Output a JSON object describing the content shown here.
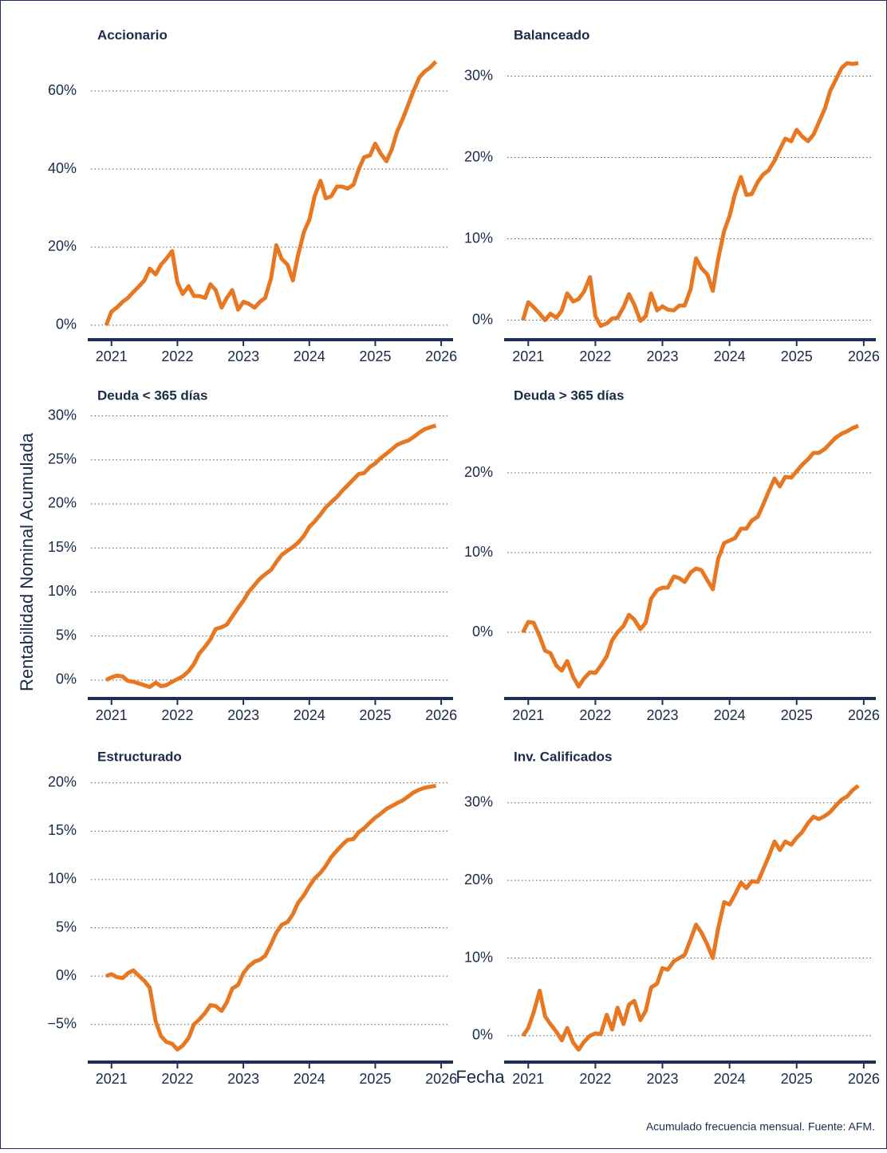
{
  "ylabel": "Rentabilidad Nominal Acumulada",
  "xlabel": "Fecha",
  "caption": "Acumulado frecuencia mensual. Fuente: AFM.",
  "chart_data": [
    {
      "type": "line",
      "title": "Accionario",
      "color": "#e87722",
      "grid": true,
      "x": [
        2020.92,
        2021.0,
        2021.08,
        2021.17,
        2021.25,
        2021.33,
        2021.42,
        2021.5,
        2021.58,
        2021.67,
        2021.75,
        2021.83,
        2021.92,
        2022.0,
        2022.08,
        2022.17,
        2022.25,
        2022.33,
        2022.42,
        2022.5,
        2022.58,
        2022.67,
        2022.75,
        2022.83,
        2022.92,
        2023.0,
        2023.08,
        2023.17,
        2023.25,
        2023.33,
        2023.42,
        2023.5,
        2023.58,
        2023.67,
        2023.75,
        2023.83,
        2023.92,
        2024.0,
        2024.08,
        2024.17,
        2024.25,
        2024.33,
        2024.42,
        2024.5,
        2024.58,
        2024.67,
        2024.75,
        2024.83,
        2024.92,
        2025.0,
        2025.08,
        2025.17,
        2025.25,
        2025.33,
        2025.42,
        2025.5,
        2025.58,
        2025.67,
        2025.75,
        2025.83,
        2025.92
      ],
      "values": [
        0,
        3.5,
        4.5,
        6,
        7,
        8.5,
        10,
        11.5,
        14.5,
        13,
        15.5,
        17,
        19,
        11,
        8,
        10,
        7.5,
        7.5,
        7,
        10.5,
        9,
        4.5,
        7,
        9,
        4,
        6,
        5.5,
        4.5,
        6,
        7,
        12,
        20.5,
        17,
        15.5,
        11.5,
        18,
        24,
        27,
        33,
        37,
        32.5,
        33,
        35.5,
        35.5,
        35,
        36,
        40,
        43,
        43.5,
        46.5,
        44,
        42,
        45,
        49.5,
        53,
        56.5,
        60,
        63.5,
        65,
        66,
        67.5
      ],
      "xlim": [
        2020.64,
        2026.18
      ],
      "xticks": [
        2021,
        2022,
        2023,
        2024,
        2025,
        2026
      ],
      "ylim": [
        -3.7,
        69
      ],
      "yticks": [
        {
          "value": 0,
          "label": "0%"
        },
        {
          "value": 20,
          "label": "20%"
        },
        {
          "value": 40,
          "label": "40%"
        },
        {
          "value": 60,
          "label": "60%"
        }
      ]
    },
    {
      "type": "line",
      "title": "Balanceado",
      "color": "#e87722",
      "grid": true,
      "x": [
        2020.92,
        2021.0,
        2021.08,
        2021.17,
        2021.25,
        2021.33,
        2021.42,
        2021.5,
        2021.58,
        2021.67,
        2021.75,
        2021.83,
        2021.92,
        2022.0,
        2022.08,
        2022.17,
        2022.25,
        2022.33,
        2022.42,
        2022.5,
        2022.58,
        2022.67,
        2022.75,
        2022.83,
        2022.92,
        2023.0,
        2023.08,
        2023.17,
        2023.25,
        2023.33,
        2023.42,
        2023.5,
        2023.58,
        2023.67,
        2023.75,
        2023.83,
        2023.92,
        2024.0,
        2024.08,
        2024.17,
        2024.25,
        2024.33,
        2024.42,
        2024.5,
        2024.58,
        2024.67,
        2024.75,
        2024.83,
        2024.92,
        2025.0,
        2025.08,
        2025.17,
        2025.25,
        2025.33,
        2025.42,
        2025.5,
        2025.58,
        2025.67,
        2025.75,
        2025.83,
        2025.92
      ],
      "values": [
        0,
        2.2,
        1.6,
        0.8,
        0,
        0.8,
        0.3,
        1.2,
        3.3,
        2.3,
        2.6,
        3.5,
        5.3,
        0.5,
        -0.7,
        -0.4,
        0.2,
        0.3,
        1.6,
        3.2,
        1.9,
        -0.1,
        0.5,
        3.3,
        1.2,
        1.7,
        1.3,
        1.2,
        1.8,
        1.8,
        3.8,
        7.6,
        6.4,
        5.6,
        3.6,
        7.5,
        11,
        12.8,
        15.5,
        17.6,
        15.4,
        15.5,
        17,
        17.9,
        18.4,
        19.6,
        21,
        22.3,
        22,
        23.4,
        22.6,
        22,
        22.8,
        24.3,
        26,
        28.2,
        29.5,
        31,
        31.6,
        31.5,
        31.6
      ],
      "xlim": [
        2020.64,
        2026.18
      ],
      "xticks": [
        2021,
        2022,
        2023,
        2024,
        2025,
        2026
      ],
      "ylim": [
        -2.4,
        32.5
      ],
      "yticks": [
        {
          "value": 0,
          "label": "0%"
        },
        {
          "value": 10,
          "label": "10%"
        },
        {
          "value": 20,
          "label": "20%"
        },
        {
          "value": 30,
          "label": "30%"
        }
      ]
    },
    {
      "type": "line",
      "title": "Deuda < 365 días",
      "color": "#e87722",
      "grid": true,
      "x": [
        2020.92,
        2021.0,
        2021.08,
        2021.17,
        2021.25,
        2021.33,
        2021.42,
        2021.5,
        2021.58,
        2021.67,
        2021.75,
        2021.83,
        2021.92,
        2022.0,
        2022.08,
        2022.17,
        2022.25,
        2022.33,
        2022.42,
        2022.5,
        2022.58,
        2022.67,
        2022.75,
        2022.83,
        2022.92,
        2023.0,
        2023.08,
        2023.17,
        2023.25,
        2023.33,
        2023.42,
        2023.5,
        2023.58,
        2023.67,
        2023.75,
        2023.83,
        2023.92,
        2024.0,
        2024.08,
        2024.17,
        2024.25,
        2024.33,
        2024.42,
        2024.5,
        2024.58,
        2024.67,
        2024.75,
        2024.83,
        2024.92,
        2025.0,
        2025.08,
        2025.17,
        2025.25,
        2025.33,
        2025.42,
        2025.5,
        2025.58,
        2025.67,
        2025.75,
        2025.83,
        2025.92
      ],
      "values": [
        0,
        0.3,
        0.5,
        0.4,
        -0.1,
        -0.2,
        -0.4,
        -0.6,
        -0.8,
        -0.3,
        -0.7,
        -0.6,
        -0.2,
        0.1,
        0.4,
        1.0,
        1.8,
        3.0,
        3.8,
        4.6,
        5.8,
        6.0,
        6.3,
        7.2,
        8.2,
        9.0,
        10.0,
        10.8,
        11.5,
        12.0,
        12.5,
        13.4,
        14.2,
        14.7,
        15.1,
        15.6,
        16.4,
        17.4,
        18.0,
        18.8,
        19.6,
        20.2,
        20.8,
        21.5,
        22.1,
        22.8,
        23.4,
        23.5,
        24.2,
        24.6,
        25.2,
        25.7,
        26.2,
        26.7,
        27.0,
        27.2,
        27.6,
        28.1,
        28.5,
        28.7,
        28.9
      ],
      "xlim": [
        2020.64,
        2026.18
      ],
      "xticks": [
        2021,
        2022,
        2023,
        2024,
        2025,
        2026
      ],
      "ylim": [
        -2.1,
        31.5
      ],
      "yticks": [
        {
          "value": 0,
          "label": "0%"
        },
        {
          "value": 5,
          "label": "5%"
        },
        {
          "value": 10,
          "label": "10%"
        },
        {
          "value": 15,
          "label": "15%"
        },
        {
          "value": 20,
          "label": "20%"
        },
        {
          "value": 25,
          "label": "25%"
        },
        {
          "value": 30,
          "label": "30%"
        }
      ]
    },
    {
      "type": "line",
      "title": "Deuda > 365 días",
      "color": "#e87722",
      "grid": true,
      "x": [
        2020.92,
        2021.0,
        2021.08,
        2021.17,
        2021.25,
        2021.33,
        2021.42,
        2021.5,
        2021.58,
        2021.67,
        2021.75,
        2021.83,
        2021.92,
        2022.0,
        2022.08,
        2022.17,
        2022.25,
        2022.33,
        2022.42,
        2022.5,
        2022.58,
        2022.67,
        2022.75,
        2022.83,
        2022.92,
        2023.0,
        2023.08,
        2023.17,
        2023.25,
        2023.33,
        2023.42,
        2023.5,
        2023.58,
        2023.67,
        2023.75,
        2023.83,
        2023.92,
        2024.0,
        2024.08,
        2024.17,
        2024.25,
        2024.33,
        2024.42,
        2024.5,
        2024.58,
        2024.67,
        2024.75,
        2024.83,
        2024.92,
        2025.0,
        2025.08,
        2025.17,
        2025.25,
        2025.33,
        2025.42,
        2025.5,
        2025.58,
        2025.67,
        2025.75,
        2025.83,
        2025.92
      ],
      "values": [
        0,
        1.3,
        1.2,
        -0.5,
        -2.3,
        -2.6,
        -4.2,
        -4.8,
        -3.6,
        -5.6,
        -6.8,
        -5.8,
        -5.0,
        -5.1,
        -4.2,
        -3.0,
        -1.0,
        0,
        0.8,
        2.2,
        1.6,
        0.4,
        1.2,
        4.2,
        5.3,
        5.6,
        5.6,
        7.0,
        6.8,
        6.3,
        7.5,
        8.0,
        7.8,
        6.5,
        5.4,
        9.2,
        11.2,
        11.5,
        11.8,
        13,
        13,
        14,
        14.5,
        16,
        17.6,
        19.3,
        18.3,
        19.5,
        19.4,
        20.2,
        21,
        21.7,
        22.5,
        22.5,
        23,
        23.7,
        24.4,
        24.9,
        25.2,
        25.6,
        25.9
      ],
      "xlim": [
        2020.64,
        2026.18
      ],
      "xticks": [
        2021,
        2022,
        2023,
        2024,
        2025,
        2026
      ],
      "ylim": [
        -8.3,
        28.8
      ],
      "yticks": [
        {
          "value": 0,
          "label": "0%"
        },
        {
          "value": 10,
          "label": "10%"
        },
        {
          "value": 20,
          "label": "20%"
        }
      ]
    },
    {
      "type": "line",
      "title": "Estructurado",
      "color": "#e87722",
      "grid": true,
      "x": [
        2020.92,
        2021.0,
        2021.08,
        2021.17,
        2021.25,
        2021.33,
        2021.42,
        2021.5,
        2021.58,
        2021.67,
        2021.75,
        2021.83,
        2021.92,
        2022.0,
        2022.08,
        2022.17,
        2022.25,
        2022.33,
        2022.42,
        2022.5,
        2022.58,
        2022.67,
        2022.75,
        2022.83,
        2022.92,
        2023.0,
        2023.08,
        2023.17,
        2023.25,
        2023.33,
        2023.42,
        2023.5,
        2023.58,
        2023.67,
        2023.75,
        2023.83,
        2023.92,
        2024.0,
        2024.08,
        2024.17,
        2024.25,
        2024.33,
        2024.42,
        2024.5,
        2024.58,
        2024.67,
        2024.75,
        2024.83,
        2024.92,
        2025.0,
        2025.08,
        2025.17,
        2025.25,
        2025.33,
        2025.42,
        2025.5,
        2025.58,
        2025.67,
        2025.75,
        2025.83,
        2025.92
      ],
      "values": [
        0,
        0.2,
        -0.1,
        -0.2,
        0.3,
        0.6,
        0,
        -0.5,
        -1.2,
        -4.7,
        -6.2,
        -6.8,
        -7.0,
        -7.6,
        -7.2,
        -6.4,
        -5.0,
        -4.5,
        -3.8,
        -3.0,
        -3.1,
        -3.6,
        -2.7,
        -1.3,
        -0.9,
        0.3,
        1.0,
        1.5,
        1.7,
        2.1,
        3.3,
        4.5,
        5.3,
        5.6,
        6.4,
        7.6,
        8.4,
        9.3,
        10.1,
        10.7,
        11.4,
        12.3,
        13,
        13.6,
        14.1,
        14.2,
        14.9,
        15.3,
        15.9,
        16.4,
        16.8,
        17.3,
        17.6,
        17.9,
        18.2,
        18.6,
        19.0,
        19.3,
        19.5,
        19.6,
        19.7
      ],
      "xlim": [
        2020.64,
        2026.18
      ],
      "xticks": [
        2021,
        2022,
        2023,
        2024,
        2025,
        2026
      ],
      "ylim": [
        -8.9,
        21.8
      ],
      "yticks": [
        {
          "value": -5,
          "label": "−5%"
        },
        {
          "value": 0,
          "label": "0%"
        },
        {
          "value": 5,
          "label": "5%"
        },
        {
          "value": 10,
          "label": "10%"
        },
        {
          "value": 15,
          "label": "15%"
        },
        {
          "value": 20,
          "label": "20%"
        }
      ]
    },
    {
      "type": "line",
      "title": "Inv. Calificados",
      "color": "#e87722",
      "grid": true,
      "x": [
        2020.92,
        2021.0,
        2021.08,
        2021.17,
        2021.25,
        2021.33,
        2021.42,
        2021.5,
        2021.58,
        2021.67,
        2021.75,
        2021.83,
        2021.92,
        2022.0,
        2022.08,
        2022.17,
        2022.25,
        2022.33,
        2022.42,
        2022.5,
        2022.58,
        2022.67,
        2022.75,
        2022.83,
        2022.92,
        2023.0,
        2023.08,
        2023.17,
        2023.25,
        2023.33,
        2023.42,
        2023.5,
        2023.58,
        2023.67,
        2023.75,
        2023.83,
        2023.92,
        2024.0,
        2024.08,
        2024.17,
        2024.25,
        2024.33,
        2024.42,
        2024.5,
        2024.58,
        2024.67,
        2024.75,
        2024.83,
        2024.92,
        2025.0,
        2025.08,
        2025.17,
        2025.25,
        2025.33,
        2025.42,
        2025.5,
        2025.58,
        2025.67,
        2025.75,
        2025.83,
        2025.92
      ],
      "values": [
        0,
        1,
        3,
        5.8,
        2.5,
        1.5,
        0.5,
        -0.6,
        1.0,
        -0.9,
        -1.8,
        -0.8,
        0,
        0.3,
        0.2,
        2.7,
        0.8,
        3.6,
        1.5,
        4.0,
        4.5,
        2.0,
        3.2,
        6.2,
        6.7,
        8.7,
        8.5,
        9.6,
        10.0,
        10.4,
        12.4,
        14.3,
        13.3,
        11.7,
        10.0,
        13.8,
        17.2,
        16.9,
        18.2,
        19.7,
        19.0,
        19.9,
        19.8,
        21.4,
        23,
        25,
        23.9,
        25,
        24.6,
        25.5,
        26.2,
        27.4,
        28.2,
        27.9,
        28.3,
        28.8,
        29.6,
        30.4,
        30.8,
        31.6,
        32.2
      ],
      "xlim": [
        2020.64,
        2026.18
      ],
      "xticks": [
        2021,
        2022,
        2023,
        2024,
        2025,
        2026
      ],
      "ylim": [
        -3.4,
        34.8
      ],
      "yticks": [
        {
          "value": 0,
          "label": "0%"
        },
        {
          "value": 10,
          "label": "10%"
        },
        {
          "value": 20,
          "label": "20%"
        },
        {
          "value": 30,
          "label": "30%"
        }
      ]
    }
  ]
}
